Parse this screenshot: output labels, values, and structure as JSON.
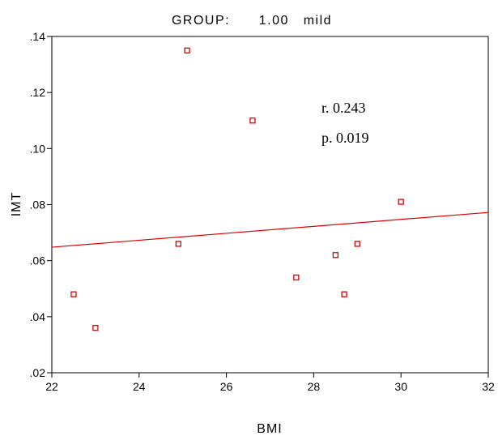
{
  "chart_data": {
    "type": "scatter",
    "title": "GROUP:      1.00   mild",
    "xlabel": "BMI",
    "ylabel": "IMT",
    "xlim": [
      22,
      32
    ],
    "ylim": [
      0.02,
      0.14
    ],
    "x_ticks": [
      22,
      24,
      26,
      28,
      30,
      32
    ],
    "x_tick_labels": [
      "22",
      "24",
      "26",
      "28",
      "30",
      "32"
    ],
    "y_ticks": [
      0.02,
      0.04,
      0.06,
      0.08,
      0.1,
      0.12,
      0.14
    ],
    "y_tick_labels": [
      ".02",
      ".04",
      ".06",
      ".08",
      ".10",
      ".12",
      ".14"
    ],
    "grid": false,
    "points": [
      {
        "x": 22.5,
        "y": 0.048
      },
      {
        "x": 23.0,
        "y": 0.036
      },
      {
        "x": 24.9,
        "y": 0.066
      },
      {
        "x": 25.1,
        "y": 0.135
      },
      {
        "x": 26.6,
        "y": 0.11
      },
      {
        "x": 27.6,
        "y": 0.054
      },
      {
        "x": 28.5,
        "y": 0.062
      },
      {
        "x": 28.7,
        "y": 0.048
      },
      {
        "x": 29.0,
        "y": 0.066
      },
      {
        "x": 30.0,
        "y": 0.081
      }
    ],
    "fit_line": {
      "x": [
        22,
        32
      ],
      "y": [
        0.0648,
        0.0772
      ]
    },
    "annotations": [
      "r. 0.243",
      "p. 0.019"
    ],
    "marker_color": "#e00000",
    "line_color": "#e00000"
  }
}
